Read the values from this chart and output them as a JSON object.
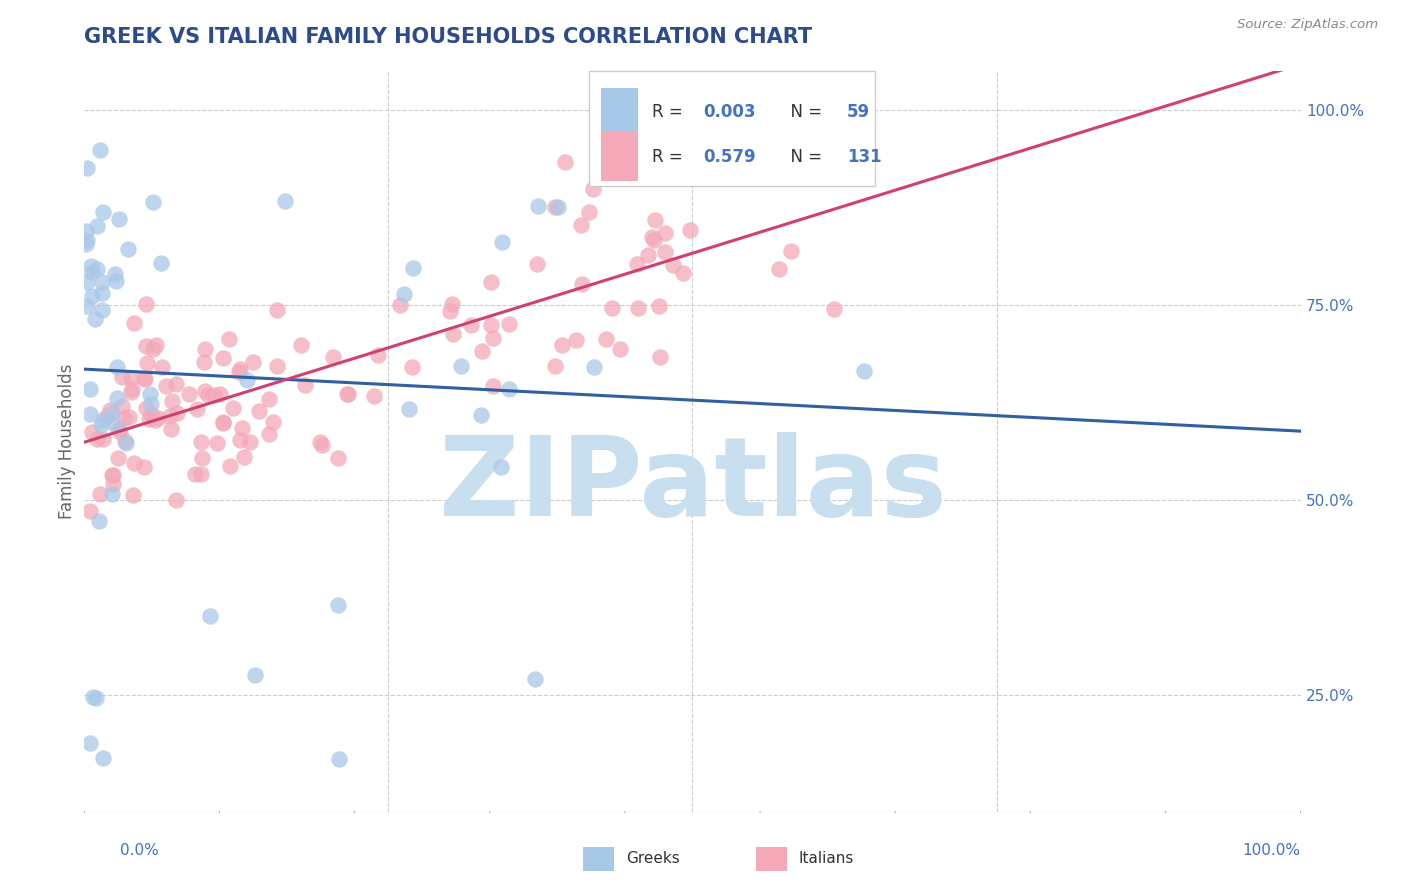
{
  "title": "GREEK VS ITALIAN FAMILY HOUSEHOLDS CORRELATION CHART",
  "source": "Source: ZipAtlas.com",
  "ylabel": "Family Households",
  "greek_R": 0.003,
  "greek_N": 59,
  "italian_R": 0.579,
  "italian_N": 131,
  "blue_scatter_color": "#a8c8e8",
  "pink_scatter_color": "#f4a8b8",
  "blue_line_color": "#3060a0",
  "pink_line_color": "#d04070",
  "title_color": "#2c4a8c",
  "axis_label_color": "#4472c4",
  "legend_r_color": "#4472c4",
  "background_color": "#ffffff",
  "grid_color": "#cccccc",
  "watermark_text": "ZIPatlas",
  "watermark_color": "#c8dff0",
  "seed": 123,
  "ylim_min": 0.1,
  "ylim_max": 1.05,
  "xlim_min": 0.0,
  "xlim_max": 1.0
}
